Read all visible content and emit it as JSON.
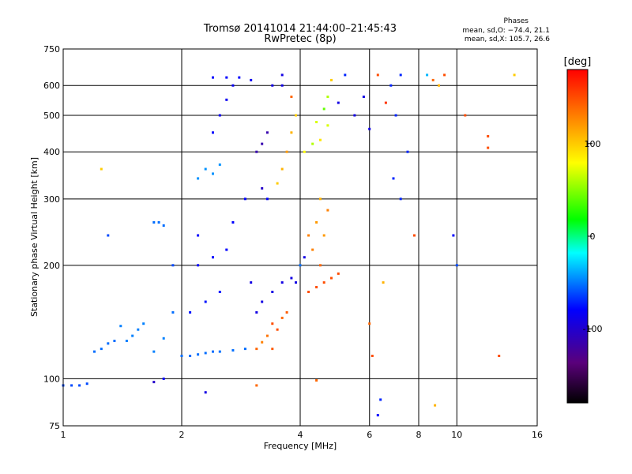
{
  "header": {
    "title_line1": "Tromsø 20141014 21:44:00–21:45:43",
    "title_line2": "RwPretec (8p)",
    "phases_label": "Phases",
    "phases_o": "mean, sd,O: −74.4, 21.1",
    "phases_x": "mean, sd,X: 105.7, 26.6"
  },
  "chart_data": {
    "type": "scatter",
    "xlabel": "Frequency [MHz]",
    "ylabel": "Stationary phase Virtual Height [km]",
    "x_scale": "log",
    "y_scale": "log",
    "xlim": [
      1,
      16
    ],
    "ylim": [
      75,
      750
    ],
    "x_ticks": [
      1,
      2,
      4,
      6,
      8,
      10,
      16
    ],
    "y_ticks": [
      75,
      100,
      200,
      300,
      400,
      500,
      600,
      750
    ],
    "x_gridlines": [
      2,
      4,
      6,
      8,
      10
    ],
    "y_gridlines": [
      100,
      200,
      300,
      400,
      500,
      600
    ],
    "colorbar": {
      "label": "[deg]",
      "range": [
        -180,
        180
      ],
      "ticks": [
        100,
        0,
        -100
      ],
      "colormap": "rainbow (black→violet→blue→cyan→green→yellow→red)"
    },
    "series": [
      {
        "x": 1.0,
        "y": 96,
        "phase": -70
      },
      {
        "x": 1.05,
        "y": 96,
        "phase": -70
      },
      {
        "x": 1.1,
        "y": 96,
        "phase": -70
      },
      {
        "x": 1.15,
        "y": 97,
        "phase": -70
      },
      {
        "x": 1.2,
        "y": 118,
        "phase": -60
      },
      {
        "x": 1.25,
        "y": 120,
        "phase": -60
      },
      {
        "x": 1.3,
        "y": 124,
        "phase": -60
      },
      {
        "x": 1.35,
        "y": 126,
        "phase": -60
      },
      {
        "x": 1.4,
        "y": 138,
        "phase": -55
      },
      {
        "x": 1.45,
        "y": 126,
        "phase": -55
      },
      {
        "x": 1.5,
        "y": 130,
        "phase": -55
      },
      {
        "x": 1.55,
        "y": 135,
        "phase": -55
      },
      {
        "x": 1.6,
        "y": 140,
        "phase": -55
      },
      {
        "x": 1.7,
        "y": 118,
        "phase": -55
      },
      {
        "x": 1.8,
        "y": 128,
        "phase": -55
      },
      {
        "x": 1.9,
        "y": 150,
        "phase": -60
      },
      {
        "x": 1.7,
        "y": 260,
        "phase": -60
      },
      {
        "x": 1.75,
        "y": 260,
        "phase": -60
      },
      {
        "x": 1.8,
        "y": 255,
        "phase": -60
      },
      {
        "x": 1.9,
        "y": 200,
        "phase": -70
      },
      {
        "x": 2.0,
        "y": 115,
        "phase": -60
      },
      {
        "x": 2.1,
        "y": 115,
        "phase": -60
      },
      {
        "x": 2.2,
        "y": 116,
        "phase": -60
      },
      {
        "x": 2.3,
        "y": 117,
        "phase": -60
      },
      {
        "x": 2.4,
        "y": 118,
        "phase": -60
      },
      {
        "x": 2.5,
        "y": 118,
        "phase": -60
      },
      {
        "x": 2.7,
        "y": 119,
        "phase": -60
      },
      {
        "x": 2.9,
        "y": 120,
        "phase": -60
      },
      {
        "x": 2.1,
        "y": 150,
        "phase": -85
      },
      {
        "x": 2.3,
        "y": 160,
        "phase": -85
      },
      {
        "x": 2.5,
        "y": 170,
        "phase": -85
      },
      {
        "x": 2.2,
        "y": 200,
        "phase": -90
      },
      {
        "x": 2.4,
        "y": 210,
        "phase": -90
      },
      {
        "x": 2.6,
        "y": 220,
        "phase": -90
      },
      {
        "x": 2.2,
        "y": 240,
        "phase": -90
      },
      {
        "x": 2.3,
        "y": 360,
        "phase": -50
      },
      {
        "x": 2.4,
        "y": 350,
        "phase": -50
      },
      {
        "x": 2.2,
        "y": 340,
        "phase": -50
      },
      {
        "x": 2.5,
        "y": 370,
        "phase": -50
      },
      {
        "x": 2.4,
        "y": 450,
        "phase": -90
      },
      {
        "x": 2.5,
        "y": 500,
        "phase": -95
      },
      {
        "x": 2.6,
        "y": 550,
        "phase": -95
      },
      {
        "x": 2.7,
        "y": 600,
        "phase": -95
      },
      {
        "x": 2.4,
        "y": 630,
        "phase": -90
      },
      {
        "x": 2.6,
        "y": 630,
        "phase": -90
      },
      {
        "x": 2.8,
        "y": 630,
        "phase": -90
      },
      {
        "x": 3.0,
        "y": 620,
        "phase": -95
      },
      {
        "x": 2.9,
        "y": 300,
        "phase": -90
      },
      {
        "x": 2.7,
        "y": 260,
        "phase": -90
      },
      {
        "x": 3.0,
        "y": 180,
        "phase": -100
      },
      {
        "x": 3.1,
        "y": 150,
        "phase": -100
      },
      {
        "x": 3.1,
        "y": 120,
        "phase": 140
      },
      {
        "x": 3.2,
        "y": 125,
        "phase": 130
      },
      {
        "x": 3.3,
        "y": 130,
        "phase": 135
      },
      {
        "x": 3.4,
        "y": 140,
        "phase": 150
      },
      {
        "x": 3.5,
        "y": 135,
        "phase": 150
      },
      {
        "x": 3.6,
        "y": 145,
        "phase": 140
      },
      {
        "x": 3.7,
        "y": 150,
        "phase": 145
      },
      {
        "x": 3.4,
        "y": 120,
        "phase": 145
      },
      {
        "x": 3.2,
        "y": 160,
        "phase": -100
      },
      {
        "x": 3.4,
        "y": 170,
        "phase": -100
      },
      {
        "x": 3.6,
        "y": 180,
        "phase": -100
      },
      {
        "x": 3.8,
        "y": 185,
        "phase": -100
      },
      {
        "x": 3.2,
        "y": 320,
        "phase": -110
      },
      {
        "x": 3.2,
        "y": 420,
        "phase": -120
      },
      {
        "x": 3.3,
        "y": 450,
        "phase": -120
      },
      {
        "x": 3.1,
        "y": 400,
        "phase": -120
      },
      {
        "x": 3.3,
        "y": 300,
        "phase": -90
      },
      {
        "x": 3.5,
        "y": 330,
        "phase": 100
      },
      {
        "x": 3.6,
        "y": 360,
        "phase": 110
      },
      {
        "x": 3.7,
        "y": 400,
        "phase": 120
      },
      {
        "x": 3.8,
        "y": 450,
        "phase": 110
      },
      {
        "x": 3.9,
        "y": 500,
        "phase": 100
      },
      {
        "x": 3.8,
        "y": 560,
        "phase": 140
      },
      {
        "x": 3.6,
        "y": 600,
        "phase": -100
      },
      {
        "x": 3.4,
        "y": 600,
        "phase": -100
      },
      {
        "x": 3.6,
        "y": 640,
        "phase": -100
      },
      {
        "x": 4.1,
        "y": 400,
        "phase": 80
      },
      {
        "x": 4.3,
        "y": 420,
        "phase": 60
      },
      {
        "x": 4.4,
        "y": 480,
        "phase": 70
      },
      {
        "x": 4.6,
        "y": 520,
        "phase": 40
      },
      {
        "x": 4.7,
        "y": 560,
        "phase": 60
      },
      {
        "x": 4.8,
        "y": 620,
        "phase": 100
      },
      {
        "x": 4.5,
        "y": 430,
        "phase": 90
      },
      {
        "x": 4.7,
        "y": 470,
        "phase": 70
      },
      {
        "x": 5.0,
        "y": 540,
        "phase": -100
      },
      {
        "x": 5.2,
        "y": 640,
        "phase": -80
      },
      {
        "x": 4.2,
        "y": 170,
        "phase": 150
      },
      {
        "x": 4.4,
        "y": 175,
        "phase": 150
      },
      {
        "x": 4.6,
        "y": 180,
        "phase": 150
      },
      {
        "x": 4.8,
        "y": 185,
        "phase": 150
      },
      {
        "x": 5.0,
        "y": 190,
        "phase": 150
      },
      {
        "x": 4.5,
        "y": 200,
        "phase": 140
      },
      {
        "x": 4.3,
        "y": 220,
        "phase": 130
      },
      {
        "x": 4.6,
        "y": 240,
        "phase": 120
      },
      {
        "x": 4.4,
        "y": 260,
        "phase": 120
      },
      {
        "x": 4.7,
        "y": 280,
        "phase": 130
      },
      {
        "x": 4.5,
        "y": 300,
        "phase": 110
      },
      {
        "x": 4.2,
        "y": 240,
        "phase": 130
      },
      {
        "x": 4.0,
        "y": 200,
        "phase": -60
      },
      {
        "x": 3.9,
        "y": 180,
        "phase": -100
      },
      {
        "x": 4.1,
        "y": 210,
        "phase": -100
      },
      {
        "x": 5.5,
        "y": 500,
        "phase": -100
      },
      {
        "x": 5.8,
        "y": 560,
        "phase": -100
      },
      {
        "x": 6.0,
        "y": 460,
        "phase": -100
      },
      {
        "x": 6.3,
        "y": 640,
        "phase": 150
      },
      {
        "x": 6.6,
        "y": 540,
        "phase": 160
      },
      {
        "x": 6.8,
        "y": 600,
        "phase": -80
      },
      {
        "x": 7.2,
        "y": 640,
        "phase": -80
      },
      {
        "x": 7.0,
        "y": 500,
        "phase": -80
      },
      {
        "x": 8.4,
        "y": 640,
        "phase": -40
      },
      {
        "x": 8.7,
        "y": 620,
        "phase": 140
      },
      {
        "x": 9.0,
        "y": 600,
        "phase": 110
      },
      {
        "x": 9.3,
        "y": 640,
        "phase": 150
      },
      {
        "x": 10.5,
        "y": 500,
        "phase": 150
      },
      {
        "x": 12.0,
        "y": 440,
        "phase": 150
      },
      {
        "x": 12.0,
        "y": 410,
        "phase": 150
      },
      {
        "x": 14.0,
        "y": 640,
        "phase": 100
      },
      {
        "x": 7.5,
        "y": 400,
        "phase": -80
      },
      {
        "x": 6.9,
        "y": 340,
        "phase": -80
      },
      {
        "x": 7.2,
        "y": 300,
        "phase": -80
      },
      {
        "x": 7.8,
        "y": 240,
        "phase": 150
      },
      {
        "x": 9.8,
        "y": 240,
        "phase": -90
      },
      {
        "x": 10.0,
        "y": 200,
        "phase": -70
      },
      {
        "x": 12.8,
        "y": 115,
        "phase": 150
      },
      {
        "x": 6.4,
        "y": 88,
        "phase": -80
      },
      {
        "x": 6.3,
        "y": 80,
        "phase": -90
      },
      {
        "x": 8.8,
        "y": 85,
        "phase": 110
      },
      {
        "x": 3.1,
        "y": 96,
        "phase": 140
      },
      {
        "x": 4.4,
        "y": 99,
        "phase": 140
      },
      {
        "x": 2.3,
        "y": 92,
        "phase": -100
      },
      {
        "x": 1.7,
        "y": 98,
        "phase": -110
      },
      {
        "x": 1.8,
        "y": 100,
        "phase": -90
      },
      {
        "x": 6.5,
        "y": 180,
        "phase": 110
      },
      {
        "x": 6.0,
        "y": 140,
        "phase": 140
      },
      {
        "x": 6.1,
        "y": 115,
        "phase": 150
      },
      {
        "x": 1.3,
        "y": 240,
        "phase": -70
      },
      {
        "x": 1.25,
        "y": 360,
        "phase": 100
      }
    ]
  }
}
